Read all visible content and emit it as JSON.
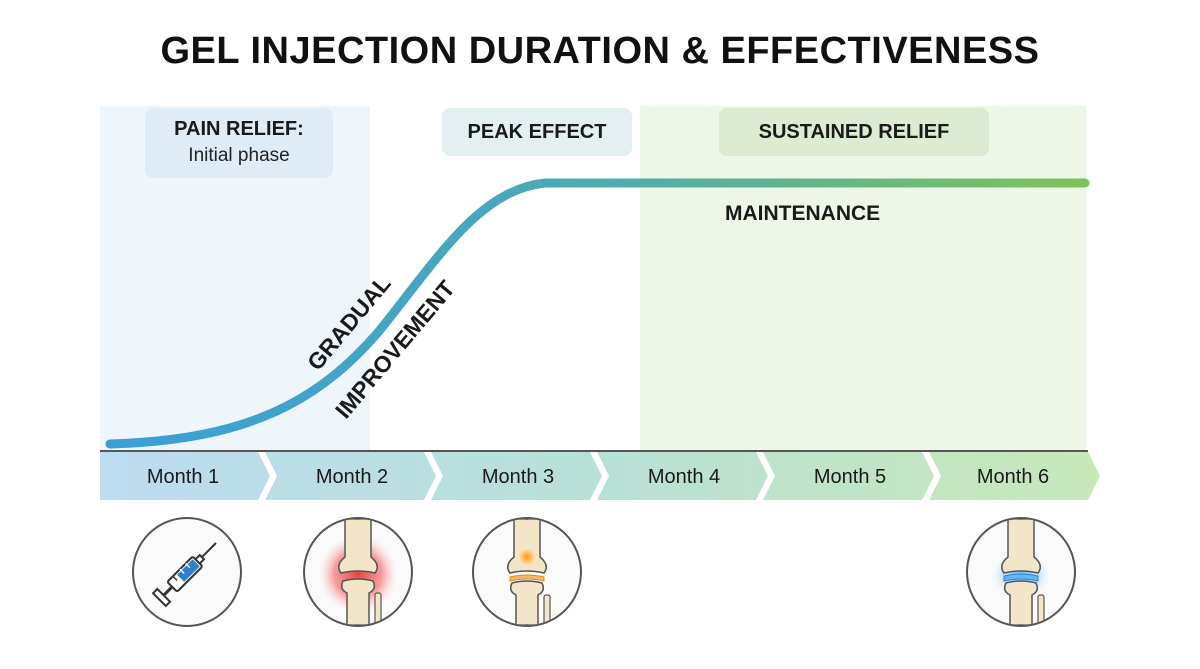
{
  "title": "GEL INJECTION DURATION & EFFECTIVENESS",
  "phases": {
    "pain_relief": {
      "label": "PAIN RELIEF:",
      "sub": "Initial phase"
    },
    "peak_effect": {
      "label": "PEAK EFFECT"
    },
    "sustained_relief": {
      "label": "SUSTAINED RELIEF"
    }
  },
  "curve_labels": {
    "gradual": "GRADUAL",
    "improvement": "IMPROVEMENT",
    "maintenance": "MAINTENANCE"
  },
  "months": [
    "Month 1",
    "Month 2",
    "Month 3",
    "Month 4",
    "Month 5",
    "Month 6"
  ],
  "icons": [
    {
      "name": "syringe-icon",
      "month": "Month 1"
    },
    {
      "name": "inflamed-knee-icon",
      "month": "Month 2"
    },
    {
      "name": "healing-knee-icon",
      "month": "Month 3"
    },
    {
      "name": "healthy-knee-icon",
      "month": "Month 6"
    }
  ],
  "colors": {
    "curve_start": "#3a9fd6",
    "curve_end": "#7cc35a",
    "initial_zone": "#eef5fb",
    "sustained_zone": "#eef6e8"
  }
}
